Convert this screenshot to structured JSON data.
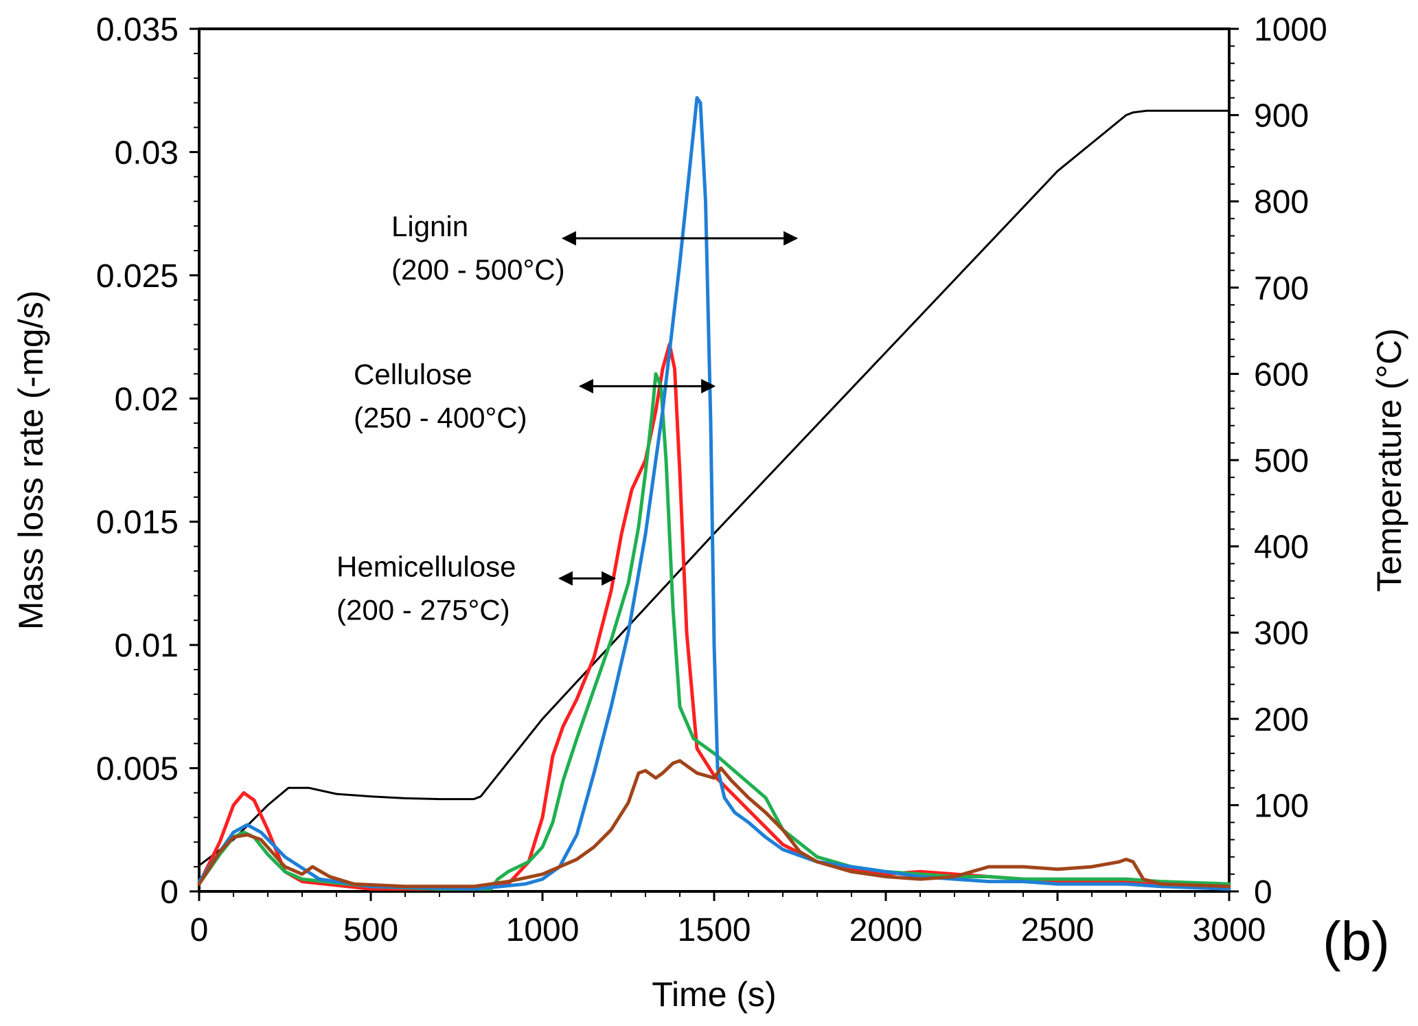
{
  "chart_data": {
    "type": "line",
    "xlabel": "Time (s)",
    "ylabel": "Mass loss rate (-mg/s)",
    "y2label": "Temperature (°C)",
    "panel_label": "(b)",
    "xlim": [
      0,
      3000
    ],
    "ylim": [
      0,
      0.035
    ],
    "y2lim": [
      0,
      1000
    ],
    "xticks": [
      0,
      500,
      1000,
      1500,
      2000,
      2500,
      3000
    ],
    "yticks": [
      0,
      0.005,
      0.01,
      0.015,
      0.02,
      0.025,
      0.03,
      0.035
    ],
    "yticklabels": [
      "0",
      "0.005",
      "0.01",
      "0.015",
      "0.02",
      "0.025",
      "0.03",
      "0.035"
    ],
    "y2ticks": [
      0,
      100,
      200,
      300,
      400,
      500,
      600,
      700,
      800,
      900,
      1000
    ],
    "series": [
      {
        "name": "Temperature",
        "axis": "right",
        "color": "#000000",
        "x": [
          0,
          100,
          200,
          260,
          320,
          400,
          500,
          600,
          700,
          800,
          820,
          1000,
          1500,
          2000,
          2500,
          2700,
          2720,
          2760,
          3000
        ],
        "y": [
          30,
          60,
          100,
          120,
          120,
          113,
          110,
          108,
          107,
          107,
          110,
          200,
          415,
          625,
          835,
          900,
          903,
          905,
          905
        ]
      },
      {
        "name": "Red sample",
        "axis": "left",
        "color": "#ff2020",
        "x": [
          0,
          60,
          100,
          130,
          160,
          200,
          250,
          300,
          500,
          800,
          900,
          960,
          1000,
          1030,
          1060,
          1100,
          1150,
          1200,
          1230,
          1260,
          1300,
          1330,
          1350,
          1370,
          1385,
          1400,
          1420,
          1450,
          1500,
          1550,
          1600,
          1650,
          1700,
          1800,
          1900,
          2000,
          2100,
          2200,
          2300,
          2400,
          2500,
          2600,
          2700,
          2800,
          3000
        ],
        "y": [
          0.0003,
          0.002,
          0.0035,
          0.004,
          0.0037,
          0.0025,
          0.0008,
          0.0004,
          0.0001,
          0.0001,
          0.0003,
          0.0012,
          0.003,
          0.0055,
          0.0067,
          0.0078,
          0.0095,
          0.0122,
          0.0145,
          0.0163,
          0.0175,
          0.0195,
          0.0212,
          0.0222,
          0.0212,
          0.017,
          0.0105,
          0.0058,
          0.0047,
          0.004,
          0.0033,
          0.0026,
          0.0019,
          0.0012,
          0.0009,
          0.0007,
          0.0008,
          0.0007,
          0.0006,
          0.0005,
          0.0004,
          0.0004,
          0.0004,
          0.0003,
          0.0003
        ]
      },
      {
        "name": "Green sample",
        "axis": "left",
        "color": "#20b050",
        "x": [
          0,
          60,
          100,
          130,
          160,
          200,
          250,
          300,
          500,
          700,
          850,
          870,
          900,
          960,
          1000,
          1030,
          1060,
          1100,
          1150,
          1200,
          1250,
          1280,
          1300,
          1320,
          1330,
          1345,
          1360,
          1380,
          1400,
          1440,
          1500,
          1550,
          1600,
          1650,
          1700,
          1800,
          1900,
          2000,
          2100,
          2200,
          2300,
          2400,
          2500,
          2600,
          2700,
          2800,
          3000
        ],
        "y": [
          0.0003,
          0.0015,
          0.0022,
          0.0024,
          0.0022,
          0.0015,
          0.0008,
          0.0005,
          0.0002,
          0.0001,
          0.0001,
          0.0005,
          0.0008,
          0.0012,
          0.0018,
          0.0028,
          0.0045,
          0.0062,
          0.0082,
          0.0102,
          0.0125,
          0.0148,
          0.017,
          0.0195,
          0.021,
          0.0205,
          0.0175,
          0.0115,
          0.0075,
          0.0062,
          0.0056,
          0.005,
          0.0044,
          0.0038,
          0.0025,
          0.0014,
          0.001,
          0.0008,
          0.0007,
          0.0006,
          0.0006,
          0.0005,
          0.0005,
          0.0005,
          0.0005,
          0.0004,
          0.0003
        ]
      },
      {
        "name": "Blue sample",
        "axis": "left",
        "color": "#1f7fd6",
        "x": [
          0,
          60,
          100,
          140,
          180,
          250,
          350,
          500,
          800,
          880,
          950,
          1000,
          1050,
          1100,
          1150,
          1200,
          1250,
          1300,
          1350,
          1400,
          1430,
          1450,
          1460,
          1475,
          1490,
          1500,
          1510,
          1530,
          1560,
          1600,
          1650,
          1700,
          1800,
          1900,
          2000,
          2100,
          2200,
          2300,
          2400,
          2500,
          2600,
          2700,
          2800,
          3000
        ],
        "y": [
          0.0004,
          0.0016,
          0.0024,
          0.0027,
          0.0024,
          0.0014,
          0.0005,
          0.0002,
          0.0001,
          0.0002,
          0.0003,
          0.0005,
          0.001,
          0.0023,
          0.0048,
          0.0075,
          0.0105,
          0.0145,
          0.0195,
          0.0255,
          0.0295,
          0.0322,
          0.032,
          0.028,
          0.019,
          0.01,
          0.005,
          0.0038,
          0.0032,
          0.0028,
          0.0022,
          0.0017,
          0.0012,
          0.001,
          0.0008,
          0.0006,
          0.0005,
          0.0004,
          0.0004,
          0.0003,
          0.0003,
          0.0003,
          0.0002,
          0.0001
        ]
      },
      {
        "name": "Brown sample",
        "axis": "left",
        "color": "#a0451a",
        "x": [
          0,
          60,
          100,
          140,
          180,
          250,
          300,
          330,
          380,
          450,
          600,
          800,
          900,
          1000,
          1100,
          1150,
          1200,
          1250,
          1280,
          1300,
          1330,
          1350,
          1380,
          1400,
          1430,
          1450,
          1500,
          1520,
          1550,
          1600,
          1650,
          1700,
          1750,
          1800,
          1900,
          2000,
          2100,
          2200,
          2250,
          2300,
          2400,
          2500,
          2600,
          2680,
          2700,
          2720,
          2750,
          2800,
          3000
        ],
        "y": [
          0.0003,
          0.0016,
          0.0022,
          0.0023,
          0.0021,
          0.001,
          0.0007,
          0.001,
          0.0006,
          0.0003,
          0.0002,
          0.0002,
          0.0004,
          0.0007,
          0.0013,
          0.0018,
          0.0025,
          0.0036,
          0.0048,
          0.0049,
          0.0046,
          0.0048,
          0.0052,
          0.0053,
          0.005,
          0.0048,
          0.0046,
          0.005,
          0.0045,
          0.0038,
          0.0032,
          0.0025,
          0.0016,
          0.0012,
          0.0008,
          0.0006,
          0.0005,
          0.0006,
          0.0008,
          0.001,
          0.001,
          0.0009,
          0.001,
          0.0012,
          0.0013,
          0.0012,
          0.0005,
          0.0003,
          0.0002
        ]
      }
    ],
    "annotations": [
      {
        "name": "lignin",
        "label": "Lignin",
        "range": "(200 - 500°C)",
        "x_start": 1060,
        "x_end": 1740,
        "y": 0.0265
      },
      {
        "name": "cellulose",
        "label": "Cellulose",
        "range": "(250 - 400°C)",
        "x_start": 1110,
        "x_end": 1500,
        "y": 0.0205
      },
      {
        "name": "hemicellulose",
        "label": "Hemicellulose",
        "range": "(200 - 275°C)",
        "x_start": 1050,
        "x_end": 1210,
        "y": 0.0127
      }
    ]
  }
}
